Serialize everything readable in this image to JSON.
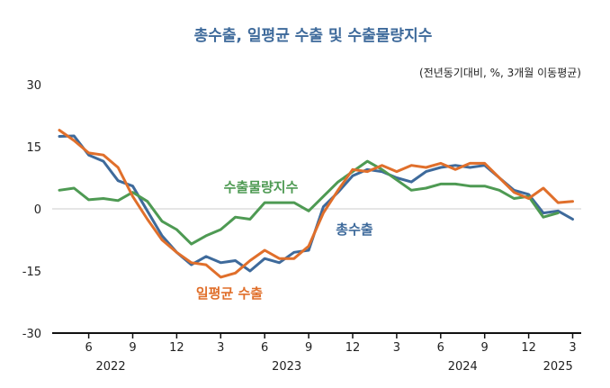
{
  "chart_data": {
    "type": "line",
    "title": "총수출, 일평균 수출 및 수출물량지수",
    "subtitle": "(전년동기대비, %, 3개월 이동평균)",
    "ylim": [
      -30,
      30
    ],
    "yticks": [
      30,
      15,
      0,
      -15,
      -30
    ],
    "grid": false,
    "zero_line": true,
    "x_month_ticks": [
      {
        "label": "6",
        "index": 2
      },
      {
        "label": "9",
        "index": 5
      },
      {
        "label": "12",
        "index": 8
      },
      {
        "label": "3",
        "index": 11
      },
      {
        "label": "6",
        "index": 14
      },
      {
        "label": "9",
        "index": 17
      },
      {
        "label": "12",
        "index": 20
      },
      {
        "label": "3",
        "index": 23
      },
      {
        "label": "6",
        "index": 26
      },
      {
        "label": "9",
        "index": 29
      },
      {
        "label": "12",
        "index": 32
      },
      {
        "label": "3",
        "index": 35
      }
    ],
    "x_year_labels": [
      {
        "label": "2022",
        "index": 3.5
      },
      {
        "label": "2023",
        "index": 15.5
      },
      {
        "label": "2024",
        "index": 27.5
      },
      {
        "label": "2025",
        "index": 34.0
      }
    ],
    "series": [
      {
        "name": "총수출",
        "color": "#3e6a9b",
        "values": [
          17.5,
          17.6,
          13.0,
          11.5,
          6.8,
          5.5,
          -0.5,
          -6.5,
          -10.5,
          -13.5,
          -11.5,
          -13.0,
          -12.5,
          -15.0,
          -12.0,
          -13.0,
          -10.5,
          -10.0,
          0.5,
          4.0,
          8.0,
          9.5,
          9.0,
          7.5,
          6.5,
          9.0,
          10.0,
          10.5,
          10.0,
          10.5,
          7.5,
          4.5,
          3.5,
          -1.0,
          -0.5,
          -2.5
        ]
      },
      {
        "name": "일평균 수출",
        "color": "#e06f2b",
        "values": [
          19.0,
          16.5,
          13.5,
          13.0,
          10.0,
          3.0,
          -2.5,
          -7.5,
          -10.5,
          -13.0,
          -13.5,
          -16.5,
          -15.5,
          -12.5,
          -10.0,
          -12.0,
          -12.0,
          -9.0,
          -1.0,
          4.5,
          9.5,
          9.0,
          10.5,
          9.0,
          10.5,
          10.0,
          11.0,
          9.5,
          11.0,
          11.0,
          7.5,
          4.0,
          2.5,
          5.0,
          1.5,
          1.8
        ]
      },
      {
        "name": "수출물량지수",
        "color": "#4e9a53",
        "values": [
          4.5,
          5.0,
          2.2,
          2.5,
          2.0,
          4.0,
          1.8,
          -3.0,
          -5.0,
          -8.5,
          -6.5,
          -5.0,
          -2.0,
          -2.5,
          1.5,
          1.5,
          1.5,
          -0.5,
          3.0,
          6.5,
          9.0,
          11.5,
          9.5,
          7.0,
          4.5,
          5.0,
          6.0,
          6.0,
          5.5,
          5.5,
          4.5,
          2.5,
          3.0,
          -2.0,
          -1.0
        ]
      }
    ]
  }
}
